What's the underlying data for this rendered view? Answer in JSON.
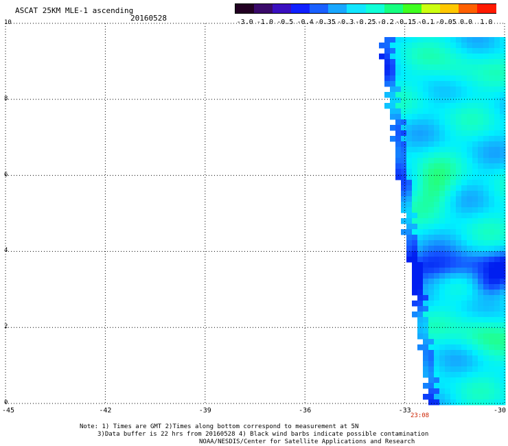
{
  "header": {
    "product": "ASCAT 25KM MLE-1 ascending",
    "date": "20160528"
  },
  "colorbar": {
    "labels": [
      "-3.0",
      "-1.0",
      "-0.5",
      "-0.4",
      "-0.35",
      "-0.3",
      "-0.25",
      "-0.2",
      "-0.15",
      "-0.1",
      "-0.05",
      "0.0",
      "1.0"
    ],
    "colors": [
      "#220022",
      "#3a0a6a",
      "#3a10c0",
      "#1020ff",
      "#1a60ff",
      "#19a7ff",
      "#12e6ff",
      "#10ffd8",
      "#16ff80",
      "#40ff20",
      "#ccff10",
      "#ffc800",
      "#ff6000",
      "#ff1a00"
    ]
  },
  "axes": {
    "y_ticks": [
      "0",
      "2",
      "4",
      "6",
      "8",
      "10"
    ],
    "x_ticks": [
      "-45",
      "-42",
      "-39",
      "-36",
      "-33",
      "-30"
    ],
    "xlim": [
      -45,
      -30
    ],
    "ylim": [
      0,
      10
    ],
    "grid": true
  },
  "swath": {
    "time_label": "23:08",
    "edge_top_lon": -33.8,
    "edge_bottom_lon": -32.3
  },
  "notes": {
    "line1": "Note: 1) Times are GMT 2)Times along bottom correspond to measurement at 5N",
    "line2": "3)Data buffer is 22 hrs from 20160528 4) Black wind barbs indicate possible contamination",
    "line3": "NOAA/NESDIS/Center for Satellite Applications and Research"
  }
}
